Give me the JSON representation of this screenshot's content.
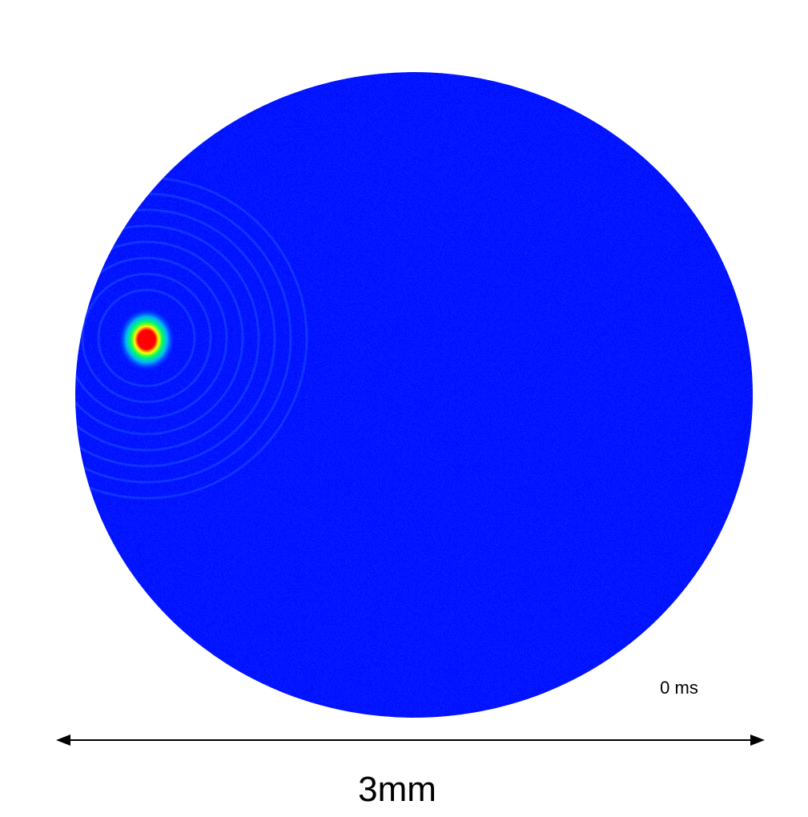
{
  "image": {
    "time_label": "0 ms"
  },
  "scale": {
    "label": "3mm"
  }
}
